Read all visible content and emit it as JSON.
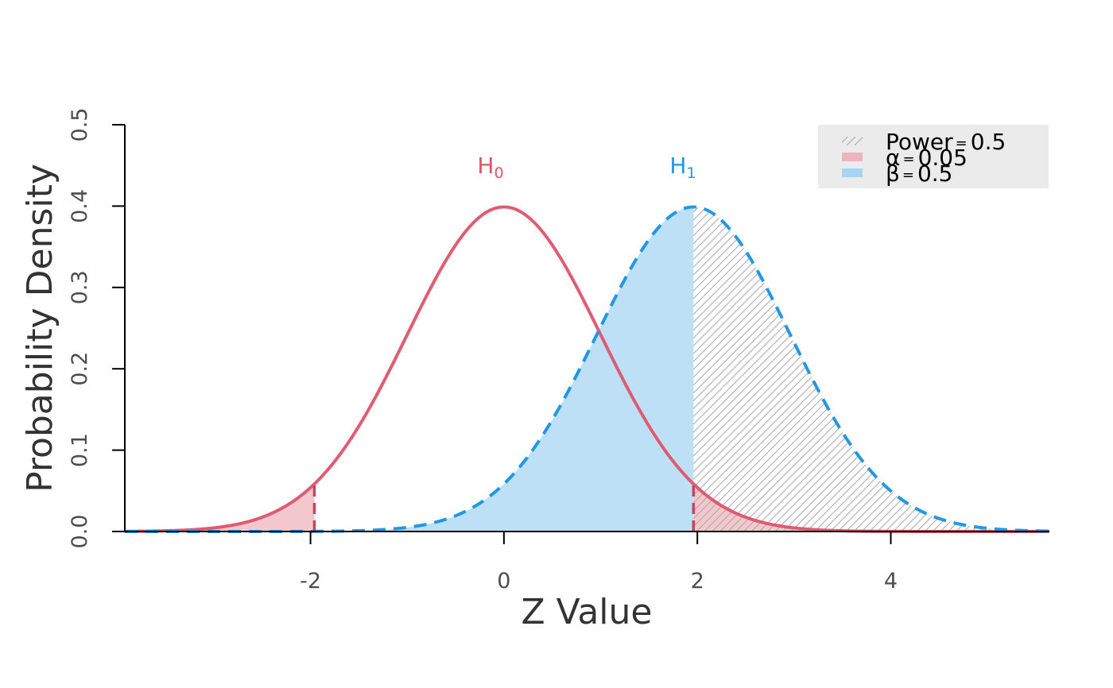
{
  "chart_data": {
    "type": "area",
    "xlabel": "Z Value",
    "ylabel": "Probability Density",
    "xlim": [
      -3.92,
      5.64
    ],
    "ylim": [
      0,
      0.5
    ],
    "x_ticks": [
      {
        "value": -2,
        "label": "-2"
      },
      {
        "value": 0,
        "label": "0"
      },
      {
        "value": 2,
        "label": "2"
      },
      {
        "value": 4,
        "label": "4"
      }
    ],
    "y_ticks": [
      {
        "value": 0,
        "label": "0.0"
      },
      {
        "value": 0.1,
        "label": "0.1"
      },
      {
        "value": 0.2,
        "label": "0.2"
      },
      {
        "value": 0.3,
        "label": "0.3"
      },
      {
        "value": 0.4,
        "label": "0.4"
      },
      {
        "value": 0.5,
        "label": "0.5"
      }
    ],
    "critical_values": [
      -1.96,
      1.96
    ],
    "series": [
      {
        "key": "h0",
        "label_main": "H",
        "label_sub": "0",
        "mean": 0,
        "sd": 1,
        "color": "#df536b",
        "line_style": "solid"
      },
      {
        "key": "h1",
        "label_main": "H",
        "label_sub": "1",
        "mean": 1.96,
        "sd": 1,
        "color": "#2297e6",
        "line_style": "dashed"
      }
    ],
    "shaded_regions": [
      {
        "key": "alpha",
        "curve": "h0",
        "range": [
          "-inf",
          -1.96
        ],
        "color": "#f2c8ce"
      },
      {
        "key": "alpha",
        "curve": "h0",
        "range": [
          1.96,
          "inf"
        ],
        "color": "#f2c8ce"
      },
      {
        "key": "beta",
        "curve": "h1",
        "range": [
          "-inf",
          1.96
        ],
        "color": "#bde0f7"
      },
      {
        "key": "power",
        "curve": "h1",
        "range": [
          1.96,
          "inf"
        ],
        "pattern": "hatch",
        "color": "#a6a6a6"
      }
    ],
    "legend": {
      "position": "top-right",
      "background": "#ebebeb",
      "entries": [
        {
          "key": "power",
          "symbol": "Power",
          "value": "0.5",
          "swatch": "hatch",
          "color": "#a6a6a6"
        },
        {
          "key": "alpha",
          "symbol": "α",
          "value": "0.05",
          "swatch": "fill",
          "color": "#eab5be"
        },
        {
          "key": "beta",
          "symbol": "β",
          "value": "0.5",
          "swatch": "fill",
          "color": "#a6d4f2"
        }
      ]
    }
  }
}
